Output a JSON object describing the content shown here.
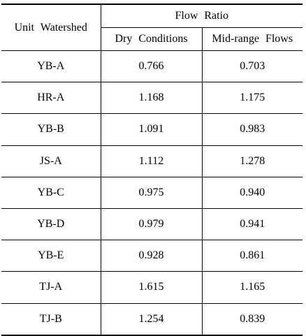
{
  "table": {
    "header": {
      "unit_col": "Unit Watershed",
      "group": "Flow Ratio",
      "sub_cols": [
        "Dry Conditions",
        "Mid-range Flows"
      ]
    },
    "rows": [
      {
        "unit": "YB-A",
        "dry": "0.766",
        "mid": "0.703"
      },
      {
        "unit": "HR-A",
        "dry": "1.168",
        "mid": "1.175"
      },
      {
        "unit": "YB-B",
        "dry": "1.091",
        "mid": "0.983"
      },
      {
        "unit": "JS-A",
        "dry": "1.112",
        "mid": "1.278"
      },
      {
        "unit": "YB-C",
        "dry": "0.975",
        "mid": "0.940"
      },
      {
        "unit": "YB-D",
        "dry": "0.979",
        "mid": "0.941"
      },
      {
        "unit": "YB-E",
        "dry": "0.928",
        "mid": "0.861"
      },
      {
        "unit": "TJ-A",
        "dry": "1.615",
        "mid": "1.165"
      },
      {
        "unit": "TJ-B",
        "dry": "1.254",
        "mid": "0.839"
      }
    ]
  }
}
